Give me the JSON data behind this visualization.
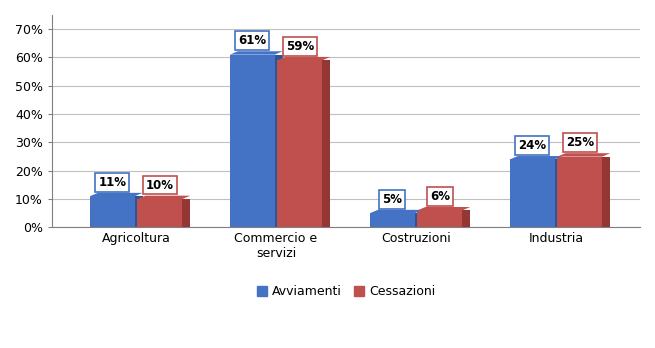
{
  "categories": [
    "Agricoltura",
    "Commercio e\nservizi",
    "Costruzioni",
    "Industria"
  ],
  "avviamenti": [
    11,
    61,
    5,
    24
  ],
  "cessazioni": [
    10,
    59,
    6,
    25
  ],
  "bar_color_avviamenti": "#4472C4",
  "bar_color_avviamenti_dark": "#2F5496",
  "bar_color_cessazioni": "#C0504D",
  "bar_color_cessazioni_dark": "#943634",
  "label_avviamenti": "Avviamenti",
  "label_cessazioni": "Cessazioni",
  "ylim": [
    0,
    0.75
  ],
  "yticks": [
    0,
    0.1,
    0.2,
    0.3,
    0.4,
    0.5,
    0.6,
    0.7
  ],
  "ytick_labels": [
    "0%",
    "10%",
    "20%",
    "30%",
    "40%",
    "50%",
    "60%",
    "70%"
  ],
  "bar_width": 0.32,
  "background_color": "#FFFFFF",
  "grid_color": "#C0C0C0",
  "font_size_ticks": 9,
  "font_size_labels": 9,
  "font_size_annotations": 8.5,
  "legend_fontsize": 9,
  "depth": 0.012
}
